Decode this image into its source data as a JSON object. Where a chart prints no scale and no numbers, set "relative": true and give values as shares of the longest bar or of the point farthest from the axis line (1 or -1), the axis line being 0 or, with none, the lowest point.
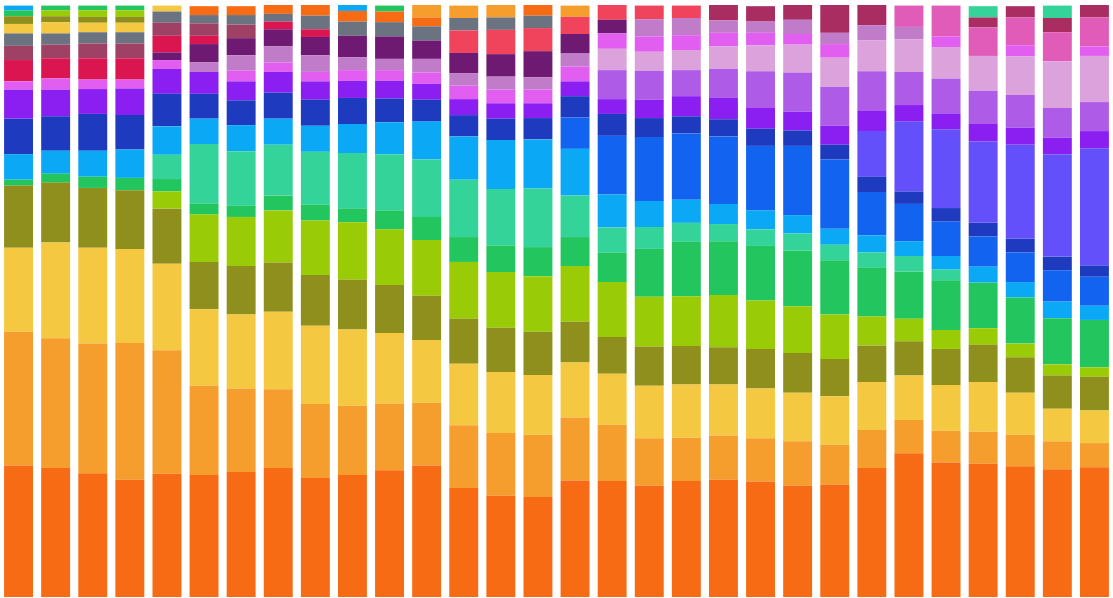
{
  "chart_data": {
    "type": "bar",
    "stacked": true,
    "relative": true,
    "categories": [
      null,
      null,
      null,
      null,
      null,
      null,
      null,
      null,
      null,
      null,
      null,
      null,
      null,
      null,
      null,
      null,
      null,
      null,
      null,
      null,
      null,
      null,
      null,
      null,
      null,
      null,
      null,
      null,
      null,
      null
    ],
    "series": [
      {
        "color": "#f76b15",
        "values": [
          0.222,
          0.218,
          0.209,
          0.198,
          0.208,
          0.206,
          0.211,
          0.218,
          0.201,
          0.206,
          0.214,
          0.222,
          0.184,
          0.171,
          0.169,
          0.197,
          0.196,
          0.188,
          0.196,
          0.198,
          0.195,
          0.188,
          0.19,
          0.218,
          0.243,
          0.227,
          0.225,
          0.221,
          0.216,
          0.219
        ]
      },
      {
        "color": "#f59e2e",
        "values": [
          0.226,
          0.219,
          0.219,
          0.231,
          0.209,
          0.151,
          0.141,
          0.133,
          0.125,
          0.117,
          0.113,
          0.106,
          0.106,
          0.106,
          0.105,
          0.106,
          0.095,
          0.08,
          0.073,
          0.075,
          0.073,
          0.075,
          0.067,
          0.064,
          0.056,
          0.054,
          0.054,
          0.053,
          0.047,
          0.041
        ]
      },
      {
        "color": "#f5c842",
        "values": [
          0.142,
          0.162,
          0.162,
          0.159,
          0.146,
          0.129,
          0.125,
          0.131,
          0.132,
          0.129,
          0.119,
          0.106,
          0.104,
          0.103,
          0.101,
          0.093,
          0.086,
          0.089,
          0.09,
          0.086,
          0.084,
          0.082,
          0.082,
          0.081,
          0.075,
          0.077,
          0.084,
          0.071,
          0.055,
          0.055
        ]
      },
      {
        "color": "#8f8f1d",
        "values": [
          0.105,
          0.101,
          0.101,
          0.099,
          0.093,
          0.08,
          0.082,
          0.083,
          0.086,
          0.084,
          0.081,
          0.075,
          0.076,
          0.075,
          0.073,
          0.069,
          0.062,
          0.066,
          0.065,
          0.063,
          0.067,
          0.067,
          0.063,
          0.062,
          0.058,
          0.061,
          0.063,
          0.06,
          0.056,
          0.057
        ]
      },
      {
        "colors": [
          "#22c55e",
          "#22c55e",
          "#22c55e",
          "#22c55e",
          "#99cc06",
          "#99cc06",
          "#99cc06",
          "#99cc06",
          "#99cc06",
          "#99cc06",
          "#99cc06",
          "#99cc06",
          "#99cc06",
          "#99cc06",
          "#99cc06",
          "#99cc06",
          "#99cc06",
          "#99cc06",
          "#99cc06",
          "#99cc06",
          "#99cc06",
          "#99cc06",
          "#99cc06",
          "#99cc06",
          "#99cc06",
          "#99cc06",
          "#99cc06",
          "#99cc06",
          "#99cc06",
          "#99cc06"
        ],
        "values": [
          0.01,
          0.015,
          0.019,
          0.021,
          0.029,
          0.08,
          0.083,
          0.088,
          0.092,
          0.097,
          0.094,
          0.094,
          0.096,
          0.094,
          0.094,
          0.094,
          0.093,
          0.084,
          0.084,
          0.088,
          0.082,
          0.079,
          0.075,
          0.049,
          0.038,
          0.032,
          0.028,
          0.023,
          0.019,
          0.016
        ]
      },
      {
        "colors": [
          "#0aa8f5",
          "#0aa8f5",
          "#0aa8f5",
          "#0aa8f5",
          "#22c55e",
          "#22c55e",
          "#22c55e",
          "#22c55e",
          "#22c55e",
          "#22c55e",
          "#22c55e",
          "#22c55e",
          "#22c55e",
          "#22c55e",
          "#22c55e",
          "#22c55e",
          "#22c55e",
          "#22c55e",
          "#22c55e",
          "#22c55e",
          "#22c55e",
          "#22c55e",
          "#22c55e",
          "#22c55e",
          "#22c55e",
          "#22c55e",
          "#22c55e",
          "#22c55e",
          "#22c55e",
          "#22c55e"
        ],
        "values": [
          0.043,
          0.039,
          0.044,
          0.048,
          0.021,
          0.019,
          0.019,
          0.025,
          0.027,
          0.023,
          0.032,
          0.039,
          0.042,
          0.045,
          0.049,
          0.049,
          0.05,
          0.081,
          0.092,
          0.091,
          0.092,
          0.094,
          0.092,
          0.082,
          0.08,
          0.084,
          0.077,
          0.078,
          0.078,
          0.08
        ]
      },
      {
        "colors": [
          "#1e3bbf",
          "#1e3bbf",
          "#1e3bbf",
          "#1e3bbf",
          "#34d399",
          "#34d399",
          "#34d399",
          "#34d399",
          "#34d399",
          "#34d399",
          "#34d399",
          "#34d399",
          "#34d399",
          "#34d399",
          "#34d399",
          "#34d399",
          "#34d399",
          "#34d399",
          "#34d399",
          "#34d399",
          "#34d399",
          "#34d399",
          "#34d399",
          "#34d399",
          "#34d399",
          "#34d399",
          "#0aa8f5",
          "#0aa8f5",
          "#0aa8f5",
          "#0aa8f5"
        ],
        "values": [
          0.06,
          0.058,
          0.062,
          0.058,
          0.041,
          0.1,
          0.092,
          0.086,
          0.089,
          0.094,
          0.095,
          0.097,
          0.097,
          0.095,
          0.099,
          0.07,
          0.042,
          0.037,
          0.032,
          0.029,
          0.028,
          0.029,
          0.026,
          0.026,
          0.026,
          0.018,
          0.027,
          0.026,
          0.028,
          0.024
        ]
      },
      {
        "colors": [
          "#8b1ff2",
          "#8b1ff2",
          "#8b1ff2",
          "#8b1ff2",
          "#0aa8f5",
          "#0aa8f5",
          "#0aa8f5",
          "#0aa8f5",
          "#0aa8f5",
          "#0aa8f5",
          "#0aa8f5",
          "#0aa8f5",
          "#0aa8f5",
          "#0aa8f5",
          "#0aa8f5",
          "#0aa8f5",
          "#0aa8f5",
          "#0aa8f5",
          "#0aa8f5",
          "#0aa8f5",
          "#0aa8f5",
          "#0aa8f5",
          "#0aa8f5",
          "#0aa8f5",
          "#0aa8f5",
          "#0aa8f5",
          "#1163f0",
          "#1163f0",
          "#1163f0",
          "#1163f0"
        ],
        "values": [
          0.049,
          0.045,
          0.042,
          0.045,
          0.048,
          0.043,
          0.044,
          0.044,
          0.044,
          0.049,
          0.054,
          0.064,
          0.073,
          0.083,
          0.083,
          0.079,
          0.056,
          0.044,
          0.039,
          0.034,
          0.032,
          0.031,
          0.027,
          0.029,
          0.025,
          0.023,
          0.051,
          0.05,
          0.053,
          0.049
        ]
      },
      {
        "colors": [
          "#e25ef0",
          "#e25ef0",
          "#e25ef0",
          "#e25ef0",
          "#1e3bbf",
          "#1e3bbf",
          "#1e3bbf",
          "#1e3bbf",
          "#1e3bbf",
          "#1e3bbf",
          "#1e3bbf",
          "#1e3bbf",
          "#1e3bbf",
          "#1e3bbf",
          "#1e3bbf",
          "#1163f0",
          "#1163f0",
          "#1163f0",
          "#1163f0",
          "#1163f0",
          "#1163f0",
          "#1163f0",
          "#1163f0",
          "#1163f0",
          "#1163f0",
          "#1163f0",
          "#1e3bbf",
          "#1e3bbf",
          "#1e3bbf",
          "#1e3bbf"
        ],
        "values": [
          0.014,
          0.019,
          0.016,
          0.015,
          0.055,
          0.042,
          0.042,
          0.044,
          0.044,
          0.044,
          0.04,
          0.037,
          0.036,
          0.036,
          0.036,
          0.053,
          0.099,
          0.108,
          0.112,
          0.114,
          0.109,
          0.117,
          0.117,
          0.073,
          0.063,
          0.058,
          0.023,
          0.023,
          0.023,
          0.019
        ]
      },
      {
        "colors": [
          "#db1550",
          "#db1550",
          "#db1550",
          "#db1550",
          "#8b1ff2",
          "#8b1ff2",
          "#8b1ff2",
          "#8b1ff2",
          "#8b1ff2",
          "#8b1ff2",
          "#8b1ff2",
          "#8b1ff2",
          "#8b1ff2",
          "#8b1ff2",
          "#8b1ff2",
          "#1e3bbf",
          "#1e3bbf",
          "#1e3bbf",
          "#1e3bbf",
          "#1e3bbf",
          "#1e3bbf",
          "#1e3bbf",
          "#1e3bbf",
          "#1e3bbf",
          "#1e3bbf",
          "#1e3bbf",
          "#6450fa",
          "#6450fa",
          "#6450fa",
          "#6450fa"
        ],
        "values": [
          0.036,
          0.034,
          0.036,
          0.036,
          0.042,
          0.037,
          0.032,
          0.035,
          0.031,
          0.029,
          0.03,
          0.027,
          0.027,
          0.026,
          0.025,
          0.036,
          0.037,
          0.032,
          0.029,
          0.029,
          0.029,
          0.026,
          0.025,
          0.026,
          0.021,
          0.023,
          0.138,
          0.159,
          0.173,
          0.198
        ]
      },
      {
        "colors": [
          "#9e4165",
          "#9e4165",
          "#9e4165",
          "#9e4165",
          "#e25ef0",
          "#c07cc8",
          "#e25ef0",
          "#e25ef0",
          "#e25ef0",
          "#e25ef0",
          "#e25ef0",
          "#e25ef0",
          "#e25ef0",
          "#e25ef0",
          "#e25ef0",
          "#8b1ff2",
          "#8b1ff2",
          "#8b1ff2",
          "#8b1ff2",
          "#8b1ff2",
          "#8b1ff2",
          "#8b1ff2",
          "#8b1ff2",
          "#6450fa",
          "#6450fa",
          "#6450fa",
          "#8b1ff2",
          "#8b1ff2",
          "#8b1ff2",
          "#8b1ff2"
        ],
        "values": [
          0.024,
          0.023,
          0.025,
          0.025,
          0.015,
          0.016,
          0.018,
          0.016,
          0.016,
          0.018,
          0.018,
          0.019,
          0.023,
          0.023,
          0.023,
          0.025,
          0.025,
          0.031,
          0.034,
          0.036,
          0.035,
          0.032,
          0.032,
          0.077,
          0.118,
          0.133,
          0.029,
          0.029,
          0.028,
          0.029
        ]
      },
      {
        "colors": [
          "#6b7280",
          "#6b7280",
          "#6b7280",
          "#6b7280",
          "#6e1a72",
          "#6e1a72",
          "#c07cc8",
          "#c07cc8",
          "#c07cc8",
          "#c07cc8",
          "#c07cc8",
          "#c07cc8",
          "#c07cc8",
          "#c07cc8",
          "#c07cc8",
          "#e25ef0",
          "#ae5ce8",
          "#ae5ce8",
          "#ae5ce8",
          "#ae5ce8",
          "#ae5ce8",
          "#ae5ce8",
          "#ae5ce8",
          "#8b1ff2",
          "#8b1ff2",
          "#8b1ff2",
          "#ae5ce8",
          "#ae5ce8",
          "#ae5ce8",
          "#ae5ce8"
        ],
        "values": [
          0.021,
          0.019,
          0.019,
          0.019,
          0.013,
          0.031,
          0.026,
          0.027,
          0.028,
          0.022,
          0.019,
          0.023,
          0.021,
          0.022,
          0.021,
          0.025,
          0.049,
          0.049,
          0.044,
          0.049,
          0.062,
          0.066,
          0.066,
          0.034,
          0.028,
          0.027,
          0.056,
          0.055,
          0.05,
          0.049
        ]
      },
      {
        "colors": [
          "#f5c842",
          "#f5c842",
          "#f5c842",
          "#f5c842",
          "#db1550",
          "#db1550",
          "#6e1a72",
          "#6e1a72",
          "#6e1a72",
          "#6e1a72",
          "#6e1a72",
          "#6e1a72",
          "#6e1a72",
          "#6e1a72",
          "#6e1a72",
          "#c07cc8",
          "#dca2dc",
          "#dca2dc",
          "#dca2dc",
          "#dca2dc",
          "#dca2dc",
          "#dca2dc",
          "#dca2dc",
          "#ae5ce8",
          "#ae5ce8",
          "#ae5ce8",
          "#dca2dc",
          "#dca2dc",
          "#dca2dc",
          "#dca2dc"
        ],
        "values": [
          0.016,
          0.019,
          0.016,
          0.016,
          0.028,
          0.014,
          0.029,
          0.029,
          0.031,
          0.036,
          0.038,
          0.031,
          0.034,
          0.038,
          0.044,
          0.022,
          0.036,
          0.032,
          0.034,
          0.038,
          0.044,
          0.047,
          0.049,
          0.067,
          0.056,
          0.059,
          0.059,
          0.065,
          0.079,
          0.078
        ]
      },
      {
        "colors": [
          "#8f8f1d",
          "#8f8f1d",
          "#8f8f1d",
          "#8f8f1d",
          "#9e4165",
          "#9e4165",
          "#9e4165",
          "#db1550",
          "#db1550",
          "#6b7280",
          "#6b7280",
          "#6b7280",
          "#f0435c",
          "#f0435c",
          "#f0435c",
          "#6e1a72",
          "#e25ef0",
          "#e25ef0",
          "#e25ef0",
          "#e25ef0",
          "#e25ef0",
          "#e25ef0",
          "#e25ef0",
          "#dca2dc",
          "#dca2dc",
          "#dca2dc",
          "#e05cb8",
          "#e25ef0",
          "#e05cb8",
          "#e25ef0"
        ],
        "values": [
          0.013,
          0.01,
          0.01,
          0.01,
          0.022,
          0.021,
          0.023,
          0.013,
          0.013,
          0.024,
          0.024,
          0.024,
          0.038,
          0.041,
          0.039,
          0.033,
          0.026,
          0.026,
          0.025,
          0.023,
          0.021,
          0.018,
          0.023,
          0.052,
          0.055,
          0.053,
          0.048,
          0.019,
          0.049,
          0.016
        ]
      },
      {
        "colors": [
          "#22c55e",
          "#99cc06",
          "#99cc06",
          "#99cc06",
          "#6b7280",
          "#6b7280",
          "#6b7280",
          "#6b7280",
          "#6b7280",
          "#f76b15",
          "#f76b15",
          "#f76b15",
          "#6b7280",
          "#6b7280",
          "#6b7280",
          "#f0435c",
          "#6e1a72",
          "#c07cc8",
          "#c07cc8",
          "#c07cc8",
          "#c07cc8",
          "#c07cc8",
          "#c07cc8",
          "#c07cc8",
          "#c07cc8",
          "#e25ef0",
          "#aa2d62",
          "#e05cb8",
          "#aa2d62",
          "#e05cb8"
        ],
        "values": [
          0.01,
          0.01,
          0.011,
          0.011,
          0.019,
          0.014,
          0.016,
          0.013,
          0.023,
          0.018,
          0.018,
          0.015,
          0.021,
          0.021,
          0.021,
          0.029,
          0.023,
          0.029,
          0.029,
          0.021,
          0.019,
          0.024,
          0.019,
          0.026,
          0.021,
          0.018,
          0.017,
          0.047,
          0.024,
          0.049
        ]
      },
      {
        "colors": [
          "#0aa8f5",
          "#22c55e",
          "#22c55e",
          "#22c55e",
          "#f5c842",
          "#f76b15",
          "#f76b15",
          "#f76b15",
          "#f76b15",
          "#0aa8f5",
          "#22c55e",
          "#f59e2e",
          "#f59e2e",
          "#f59e2e",
          "#f76b15",
          "#f59e2e",
          "#f0435c",
          "#f0435c",
          "#f0435c",
          "#aa2d62",
          "#aa2d62",
          "#aa2d62",
          "#aa2d62",
          "#aa2d62",
          "#e05cb8",
          "#e05cb8",
          "#34d399",
          "#aa2d62",
          "#34d399",
          "#aa2d62"
        ],
        "values": [
          0.008,
          0.008,
          0.008,
          0.008,
          0.01,
          0.015,
          0.015,
          0.015,
          0.018,
          0.01,
          0.01,
          0.021,
          0.021,
          0.021,
          0.018,
          0.019,
          0.025,
          0.023,
          0.021,
          0.026,
          0.026,
          0.025,
          0.047,
          0.034,
          0.036,
          0.052,
          0.019,
          0.019,
          0.021,
          0.021
        ]
      }
    ]
  }
}
